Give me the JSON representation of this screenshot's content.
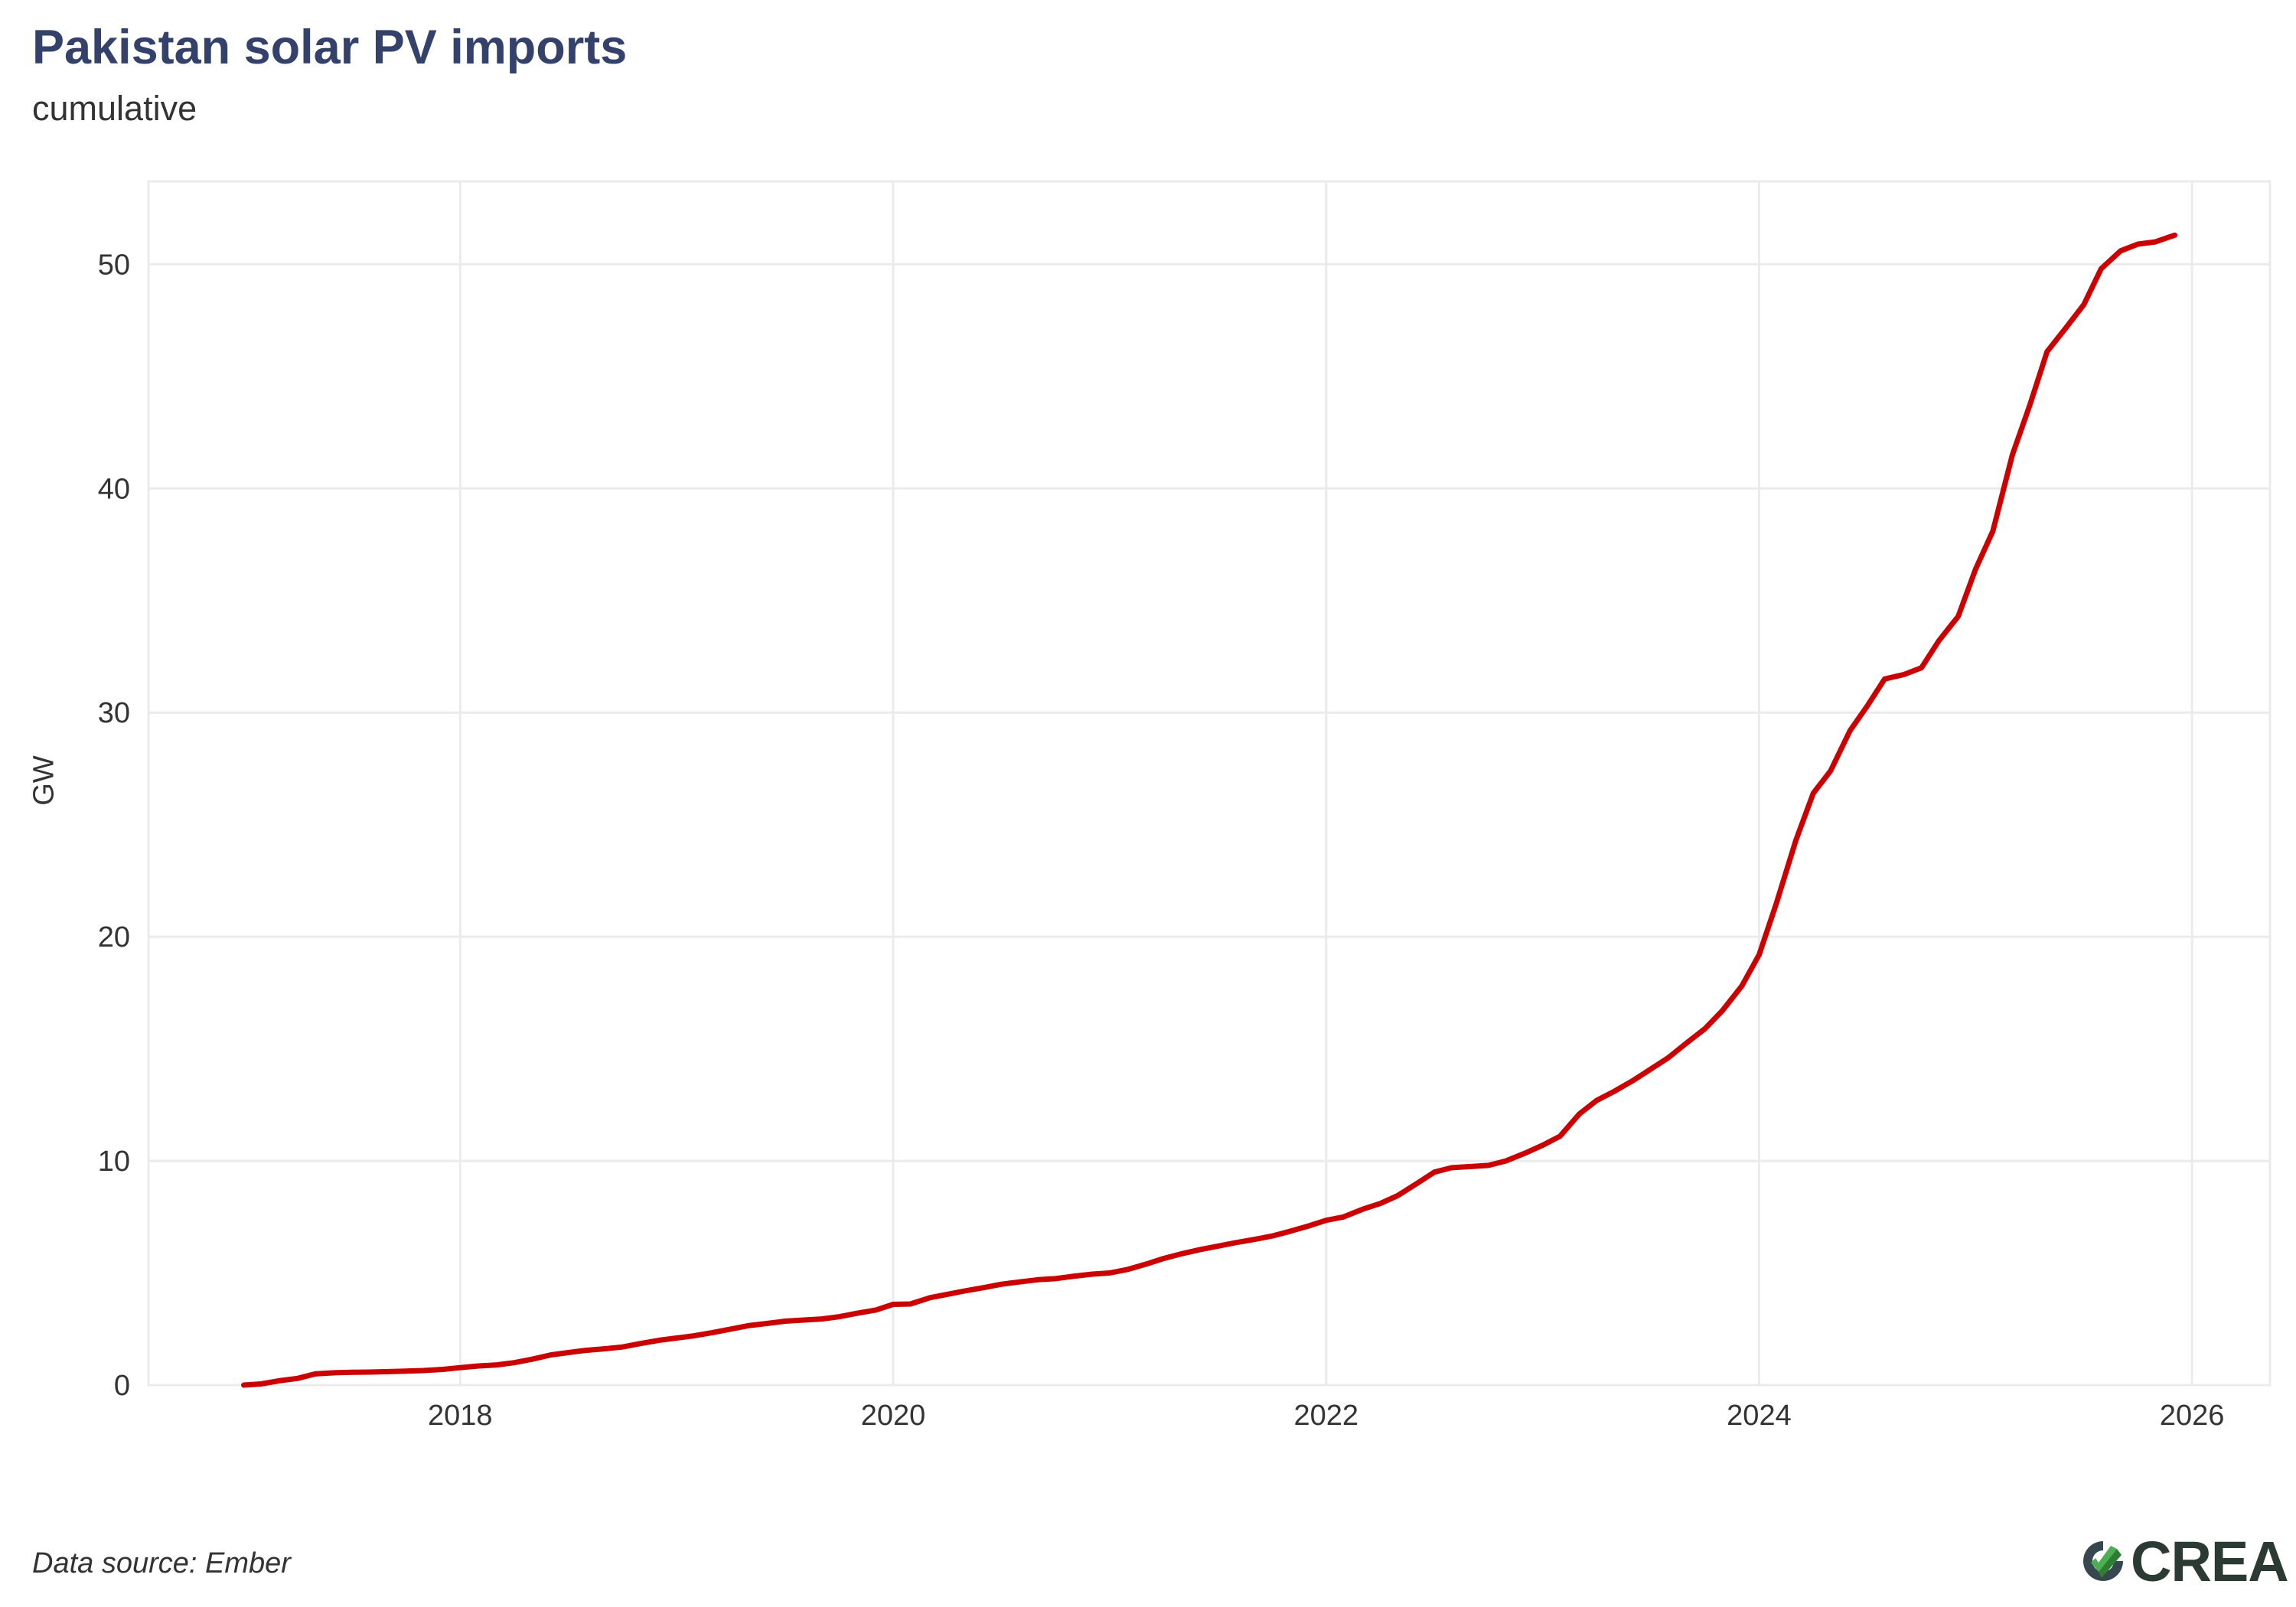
{
  "chart_data": {
    "type": "line",
    "title": "Pakistan solar PV imports",
    "subtitle": "cumulative",
    "xlabel": "",
    "ylabel": "GW",
    "xlim": [
      2016.56,
      2026.36
    ],
    "ylim": [
      0,
      53.7
    ],
    "xticks": [
      2018,
      2020,
      2022,
      2024,
      2026
    ],
    "yticks": [
      0,
      10,
      20,
      30,
      40,
      50
    ],
    "grid": true,
    "legend": "none",
    "source": "Data source: Ember",
    "series": [
      {
        "color": "#cc0000",
        "x": [
          2017.0,
          2017.08,
          2017.17,
          2017.25,
          2017.33,
          2017.42,
          2017.5,
          2017.58,
          2017.67,
          2017.75,
          2017.83,
          2017.92,
          2018.0,
          2018.08,
          2018.17,
          2018.25,
          2018.33,
          2018.42,
          2018.5,
          2018.58,
          2018.67,
          2018.75,
          2018.83,
          2018.92,
          2019.0,
          2019.08,
          2019.17,
          2019.25,
          2019.33,
          2019.42,
          2019.5,
          2019.58,
          2019.67,
          2019.75,
          2019.83,
          2019.92,
          2020.0,
          2020.08,
          2020.17,
          2020.25,
          2020.33,
          2020.42,
          2020.5,
          2020.58,
          2020.67,
          2020.75,
          2020.83,
          2020.92,
          2021.0,
          2021.08,
          2021.17,
          2021.25,
          2021.33,
          2021.42,
          2021.5,
          2021.58,
          2021.67,
          2021.75,
          2021.83,
          2021.92,
          2022.0,
          2022.08,
          2022.17,
          2022.25,
          2022.33,
          2022.42,
          2022.5,
          2022.58,
          2022.67,
          2022.75,
          2022.83,
          2022.92,
          2023.0,
          2023.08,
          2023.17,
          2023.25,
          2023.33,
          2023.42,
          2023.5,
          2023.58,
          2023.67,
          2023.75,
          2023.83,
          2023.92,
          2024.0,
          2024.08,
          2024.17,
          2024.25,
          2024.33,
          2024.42,
          2024.5,
          2024.58,
          2024.67,
          2024.75,
          2024.83,
          2024.92,
          2025.0,
          2025.08,
          2025.17,
          2025.25,
          2025.33,
          2025.42,
          2025.5,
          2025.58,
          2025.67,
          2025.75,
          2025.83,
          2025.92
        ],
        "y": [
          0.0,
          0.05,
          0.2,
          0.3,
          0.5,
          0.55,
          0.57,
          0.58,
          0.6,
          0.62,
          0.65,
          0.7,
          0.78,
          0.85,
          0.9,
          1.0,
          1.15,
          1.35,
          1.45,
          1.55,
          1.62,
          1.7,
          1.85,
          2.0,
          2.1,
          2.2,
          2.35,
          2.5,
          2.65,
          2.75,
          2.85,
          2.9,
          2.95,
          3.05,
          3.2,
          3.35,
          3.6,
          3.62,
          3.9,
          4.05,
          4.2,
          4.35,
          4.5,
          4.6,
          4.7,
          4.75,
          4.85,
          4.95,
          5.0,
          5.15,
          5.4,
          5.65,
          5.85,
          6.05,
          6.2,
          6.35,
          6.5,
          6.65,
          6.85,
          7.1,
          7.35,
          7.5,
          7.85,
          8.1,
          8.45,
          9.0,
          9.5,
          9.7,
          9.75,
          9.8,
          10.0,
          10.35,
          10.7,
          11.1,
          12.1,
          12.7,
          13.1,
          13.6,
          14.1,
          14.6,
          15.3,
          15.9,
          16.7,
          17.8,
          19.2,
          21.5,
          24.3,
          26.4,
          27.4,
          29.2,
          30.3,
          31.5,
          31.7,
          32.0,
          33.2,
          34.3,
          36.4,
          38.1,
          41.5,
          43.7,
          46.1,
          47.2,
          48.2,
          49.8,
          50.6,
          50.9,
          51.0,
          51.3
        ]
      }
    ]
  },
  "logo": {
    "text": "CREA",
    "mark": "crea-logo-icon",
    "colors": [
      "#2e7d32",
      "#4caf50",
      "#8bc34a",
      "#37474f"
    ]
  }
}
